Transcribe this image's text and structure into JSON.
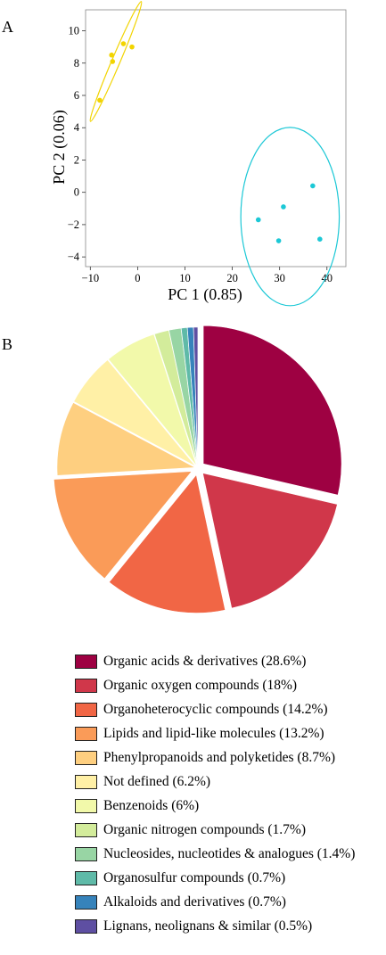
{
  "panels": {
    "a_label": "A",
    "b_label": "B"
  },
  "chart_data": [
    {
      "type": "scatter",
      "xlabel": "PC 1  (0.85)",
      "ylabel": "PC 2  (0.06)",
      "xlim": [
        -11,
        44
      ],
      "ylim": [
        -4.6,
        11.3
      ],
      "xticks": [
        -10,
        0,
        10,
        20,
        30,
        40
      ],
      "xtick_labels": [
        "−10",
        "0",
        "10",
        "20",
        "30",
        "40"
      ],
      "yticks": [
        -4,
        -2,
        0,
        2,
        4,
        6,
        8,
        10
      ],
      "ytick_labels": [
        "−4",
        "−2",
        "0",
        "2",
        "4",
        "6",
        "8",
        "10"
      ],
      "grid": false,
      "series": [
        {
          "color": "#f2d400",
          "points": [
            [
              -8,
              5.7
            ],
            [
              -5.5,
              8.5
            ],
            [
              -5.3,
              8.1
            ],
            [
              -3,
              9.2
            ],
            [
              -1.2,
              9.0
            ]
          ],
          "ellipse": {
            "cx": -4.6,
            "cy": 8.1,
            "rx": 6.4,
            "ry": 1.45,
            "angle_deg": 67
          }
        },
        {
          "color": "#1cc8d6",
          "points": [
            [
              25.5,
              -1.7
            ],
            [
              29.8,
              -3.0
            ],
            [
              30.8,
              -0.9
            ],
            [
              37.0,
              0.4
            ],
            [
              38.5,
              -2.9
            ]
          ],
          "ellipse": {
            "cx": 32.2,
            "cy": -1.5,
            "rx": 10.4,
            "ry": 2.3,
            "angle_deg": 0
          }
        }
      ]
    },
    {
      "type": "pie",
      "start_angle_deg": 90,
      "direction": "clockwise",
      "slices": [
        {
          "label": "Organic acids & derivatives (28.6%)",
          "value": 28.6,
          "color": "#9e0142",
          "explode": 0.05
        },
        {
          "label": "Organic oxygen compounds (18%)",
          "value": 18.0,
          "color": "#d0374a",
          "explode": 0.05
        },
        {
          "label": "Organoheterocyclic compounds (14.2%)",
          "value": 14.2,
          "color": "#f16645",
          "explode": 0.05
        },
        {
          "label": "Lipids and lipid-like molecules (13.2%)",
          "value": 13.2,
          "color": "#fa9b58",
          "explode": 0.05
        },
        {
          "label": "Phenylpropanoids and polyketides (8.7%)",
          "value": 8.7,
          "color": "#fecf80",
          "explode": 0.02
        },
        {
          "label": "Not defined (6.2%)",
          "value": 6.2,
          "color": "#fff0a6",
          "explode": 0.02
        },
        {
          "label": "Benzenoids (6%)",
          "value": 6.0,
          "color": "#f2f9aa",
          "explode": 0.02
        },
        {
          "label": "Organic nitrogen compounds (1.7%)",
          "value": 1.7,
          "color": "#d3ec9b",
          "explode": 0.02
        },
        {
          "label": "Nucleosides, nucleotides & analogues (1.4%)",
          "value": 1.4,
          "color": "#98d5a4",
          "explode": 0.02
        },
        {
          "label": "Organosulfur compounds (0.7%)",
          "value": 0.7,
          "color": "#5fbaa8",
          "explode": 0.02
        },
        {
          "label": "Alkaloids and derivatives (0.7%)",
          "value": 0.7,
          "color": "#3683bb",
          "explode": 0.02
        },
        {
          "label": "Lignans, neolignans & similar (0.5%)",
          "value": 0.5,
          "color": "#5e4fa2",
          "explode": 0.02
        }
      ],
      "legend": "bottom"
    }
  ]
}
